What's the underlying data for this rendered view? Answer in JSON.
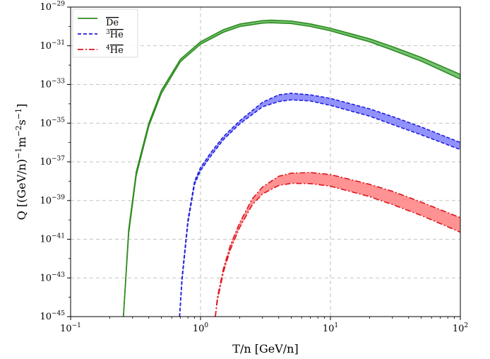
{
  "chart_data": {
    "type": "area",
    "title": "",
    "xlabel": "T/n [GeV/n]",
    "ylabel_parts": {
      "base": "Q [(GeV/n)",
      "e1": "−1",
      "mid": "m",
      "e2": "−2",
      "mid2": "s",
      "e3": "−1",
      "end": "]"
    },
    "x_scale": "log",
    "y_scale": "log",
    "xlim": [
      0.1,
      100
    ],
    "ylim": [
      1e-45,
      1e-29
    ],
    "grid": true,
    "legend_position": "top-left",
    "x_ticks": [
      {
        "base": "10",
        "exp": "−1",
        "value": 0.1
      },
      {
        "base": "10",
        "exp": "0",
        "value": 1
      },
      {
        "base": "10",
        "exp": "1",
        "value": 10
      },
      {
        "base": "10",
        "exp": "2",
        "value": 100
      }
    ],
    "y_ticks": [
      {
        "base": "10",
        "exp": "−29",
        "value": 1e-29
      },
      {
        "base": "10",
        "exp": "−31",
        "value": 1e-31
      },
      {
        "base": "10",
        "exp": "−33",
        "value": 1e-33
      },
      {
        "base": "10",
        "exp": "−35",
        "value": 1e-35
      },
      {
        "base": "10",
        "exp": "−37",
        "value": 1e-37
      },
      {
        "base": "10",
        "exp": "−39",
        "value": 1e-39
      },
      {
        "base": "10",
        "exp": "−41",
        "value": 1e-41
      },
      {
        "base": "10",
        "exp": "−43",
        "value": 1e-43
      },
      {
        "base": "10",
        "exp": "−45",
        "value": 1e-45
      }
    ],
    "series": [
      {
        "name": "De",
        "name_sup": "",
        "color": "#2e8b1e",
        "fill": "#5cb85c",
        "linestyle": "solid",
        "x": [
          0.255,
          0.28,
          0.32,
          0.4,
          0.5,
          0.7,
          1.0,
          1.5,
          2.0,
          3.0,
          3.5,
          5.0,
          7.0,
          10.0,
          20.0,
          30.0,
          50.0,
          100.0
        ],
        "upper": [
          1e-45,
          3.2e-41,
          3e-38,
          1e-35,
          5e-34,
          2e-32,
          1.6e-31,
          6.8e-31,
          1.32e-30,
          2e-30,
          2.1e-30,
          1.9e-30,
          1.35e-30,
          8e-31,
          2.3e-31,
          9e-32,
          2.5e-32,
          3.3e-33
        ],
        "lower": [
          1e-45,
          2e-41,
          2e-38,
          7e-36,
          3.5e-34,
          1.5e-32,
          1.2e-31,
          5e-31,
          9.8e-31,
          1.48e-30,
          1.55e-30,
          1.4e-30,
          1e-30,
          5.9e-31,
          1.6e-31,
          6e-32,
          1.6e-32,
          1.9e-33
        ]
      },
      {
        "name": "He",
        "name_sup": "3",
        "color": "#1f1fdc",
        "fill": "#7f7fff",
        "linestyle": "dashed",
        "x": [
          0.69,
          0.72,
          0.8,
          0.9,
          1.0,
          1.2,
          1.5,
          2.0,
          3.0,
          4.0,
          5.0,
          7.0,
          10.0,
          20.0,
          30.0,
          50.0,
          100.0
        ],
        "upper": [
          1e-45,
          1e-43,
          1e-40,
          1e-38,
          5e-38,
          3e-37,
          2e-36,
          1.3e-35,
          1.2e-34,
          2.9e-34,
          3.5e-34,
          2.9e-34,
          1.9e-34,
          5.5e-35,
          2.2e-35,
          6.3e-36,
          1e-36
        ],
        "lower": [
          1e-45,
          7e-44,
          7e-41,
          7e-39,
          3.5e-38,
          2e-37,
          1.4e-36,
          9e-36,
          7e-35,
          1.3e-34,
          1.6e-34,
          1.4e-34,
          8.3e-35,
          2.3e-35,
          8.5e-36,
          2.5e-36,
          4.3e-37
        ]
      },
      {
        "name": "He",
        "name_sup": "4",
        "color": "#e0121a",
        "fill": "#ff8080",
        "linestyle": "dashdot",
        "x": [
          1.3,
          1.35,
          1.5,
          1.7,
          2.0,
          2.5,
          3.0,
          4.0,
          5.0,
          7.0,
          10.0,
          20.0,
          30.0,
          50.0,
          100.0
        ],
        "upper": [
          1e-45,
          1e-44,
          3e-43,
          5e-42,
          7e-41,
          1.2e-39,
          5e-39,
          1.8e-38,
          2.6e-38,
          2.8e-38,
          2.2e-38,
          6.9e-39,
          3e-39,
          8.3e-40,
          1.3e-40
        ],
        "lower": [
          1e-45,
          7e-45,
          2e-43,
          3e-42,
          4e-41,
          6e-40,
          2.2e-39,
          6e-39,
          7.7e-39,
          7.5e-39,
          5.5e-39,
          1.6e-39,
          6.2e-40,
          1.7e-40,
          2.3e-41
        ]
      }
    ]
  }
}
